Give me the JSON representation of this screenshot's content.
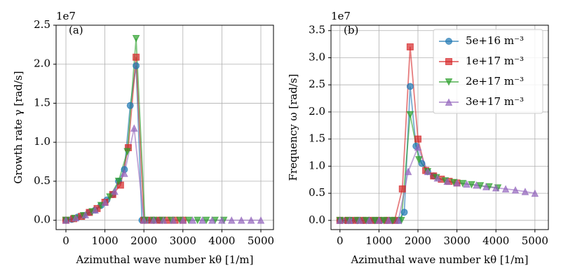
{
  "chart_data": [
    {
      "type": "line",
      "annotation": "(a)",
      "y_offset_label": "1e7",
      "xlabel": "Azimuthal wave number kθ  [1/m]",
      "ylabel": "Growth rate  γ [rad/s]",
      "xlim": [
        -252,
        5324
      ],
      "ylim": [
        -0.12,
        2.5
      ],
      "grid": true,
      "legend": null,
      "xticks": [
        0,
        1000,
        2000,
        3000,
        4000,
        5000
      ],
      "yticks": [
        {
          "value": 0,
          "label": "0.0"
        },
        0.5,
        {
          "value": 1,
          "label": "1.0"
        },
        1.5,
        {
          "value": 2,
          "label": "2.0"
        },
        2.5
      ],
      "series": [
        {
          "name": "5e+16 m⁻³",
          "color": "#1f77b4",
          "marker": "circle",
          "x": [
            0,
            150,
            300,
            450,
            600,
            750,
            900,
            1050,
            1200,
            1350,
            1500,
            1650,
            1800,
            1950,
            2100,
            2250,
            2400
          ],
          "values": [
            0,
            0.01,
            0.04,
            0.06,
            0.1,
            0.13,
            0.19,
            0.26,
            0.33,
            0.5,
            0.65,
            1.47,
            1.98,
            0,
            0,
            0,
            0
          ]
        },
        {
          "name": "1e+17 m⁻³",
          "color": "#d62728",
          "marker": "square",
          "x": [
            0,
            200,
            400,
            600,
            800,
            1000,
            1200,
            1400,
            1600,
            1800,
            2000,
            2200,
            2400,
            2600,
            2800,
            3000
          ],
          "values": [
            0,
            0.02,
            0.05,
            0.1,
            0.15,
            0.23,
            0.33,
            0.45,
            0.93,
            2.09,
            0,
            0,
            0,
            0,
            0,
            0
          ]
        },
        {
          "name": "2e+17 m⁻³",
          "color": "#2ca02c",
          "marker": "tri-down",
          "x": [
            0,
            225,
            450,
            675,
            900,
            1125,
            1350,
            1575,
            1800,
            2025,
            2250,
            2475,
            2700,
            2925,
            3150,
            3375,
            3600,
            3825,
            4050
          ],
          "values": [
            0,
            0.025,
            0.06,
            0.11,
            0.19,
            0.3,
            0.5,
            0.88,
            2.33,
            0,
            0,
            0,
            0,
            0,
            0,
            0,
            0,
            0,
            0
          ]
        },
        {
          "name": "3e+17 m⁻³",
          "color": "#9467bd",
          "marker": "tri-up",
          "x": [
            0,
            250,
            500,
            750,
            1000,
            1250,
            1500,
            1750,
            2000,
            2250,
            2500,
            2750,
            3000,
            3250,
            3500,
            3750,
            4000,
            4250,
            4500,
            4750,
            5000
          ],
          "values": [
            0,
            0.03,
            0.07,
            0.13,
            0.23,
            0.37,
            0.6,
            1.18,
            0,
            0,
            0,
            0,
            0,
            0,
            0,
            0,
            0,
            0,
            0,
            0,
            0
          ]
        }
      ]
    },
    {
      "type": "line",
      "annotation": "(b)",
      "y_offset_label": "1e7",
      "xlabel": "Azimuthal wave number kθ [1/m]",
      "ylabel": "Frequency  ω [rad/s]",
      "xlim": [
        -230,
        5345
      ],
      "ylim": [
        -0.17,
        3.6
      ],
      "grid": true,
      "legend": "upper right",
      "xticks": [
        0,
        1000,
        2000,
        3000,
        4000,
        5000
      ],
      "yticks": [
        {
          "value": 0,
          "label": "0.0"
        },
        0.5,
        {
          "value": 1,
          "label": "1.0"
        },
        1.5,
        {
          "value": 2,
          "label": "2.0"
        },
        2.5,
        {
          "value": 3,
          "label": "3.0"
        },
        3.5
      ],
      "series": [
        {
          "name": "5e+16 m⁻³",
          "color": "#1f77b4",
          "marker": "circle",
          "x": [
            0,
            150,
            300,
            450,
            600,
            750,
            900,
            1050,
            1200,
            1350,
            1500,
            1650,
            1800,
            1950,
            2100,
            2250,
            2400
          ],
          "values": [
            0,
            0,
            0,
            0,
            0,
            0,
            0,
            0,
            0,
            0,
            0,
            0.15,
            2.47,
            1.37,
            1.05,
            0.9,
            0.82
          ]
        },
        {
          "name": "1e+17 m⁻³",
          "color": "#d62728",
          "marker": "square",
          "x": [
            0,
            200,
            400,
            600,
            800,
            1000,
            1200,
            1400,
            1600,
            1800,
            2000,
            2200,
            2400,
            2600,
            2800,
            3000
          ],
          "values": [
            0,
            0,
            0,
            0,
            0,
            0,
            0,
            0,
            0.58,
            3.2,
            1.5,
            0.92,
            0.82,
            0.76,
            0.72,
            0.69
          ]
        },
        {
          "name": "2e+17 m⁻³",
          "color": "#2ca02c",
          "marker": "tri-down",
          "x": [
            0,
            225,
            450,
            675,
            900,
            1125,
            1350,
            1575,
            1800,
            2025,
            2250,
            2475,
            2700,
            2925,
            3150,
            3375,
            3600,
            3825,
            4050
          ],
          "values": [
            0,
            0,
            0,
            0,
            0,
            0,
            0,
            0,
            1.95,
            1.12,
            0.9,
            0.79,
            0.73,
            0.7,
            0.68,
            0.66,
            0.64,
            0.62,
            0.6
          ]
        },
        {
          "name": "3e+17 m⁻³",
          "color": "#9467bd",
          "marker": "tri-up",
          "x": [
            0,
            250,
            500,
            750,
            1000,
            1250,
            1500,
            1750,
            2000,
            2250,
            2500,
            2750,
            3000,
            3250,
            3500,
            3750,
            4000,
            4250,
            4500,
            4750,
            5000
          ],
          "values": [
            0,
            0,
            0,
            0,
            0,
            0,
            0,
            0.9,
            1.35,
            0.9,
            0.78,
            0.72,
            0.69,
            0.67,
            0.65,
            0.62,
            0.6,
            0.58,
            0.56,
            0.53,
            0.5
          ]
        }
      ]
    }
  ]
}
